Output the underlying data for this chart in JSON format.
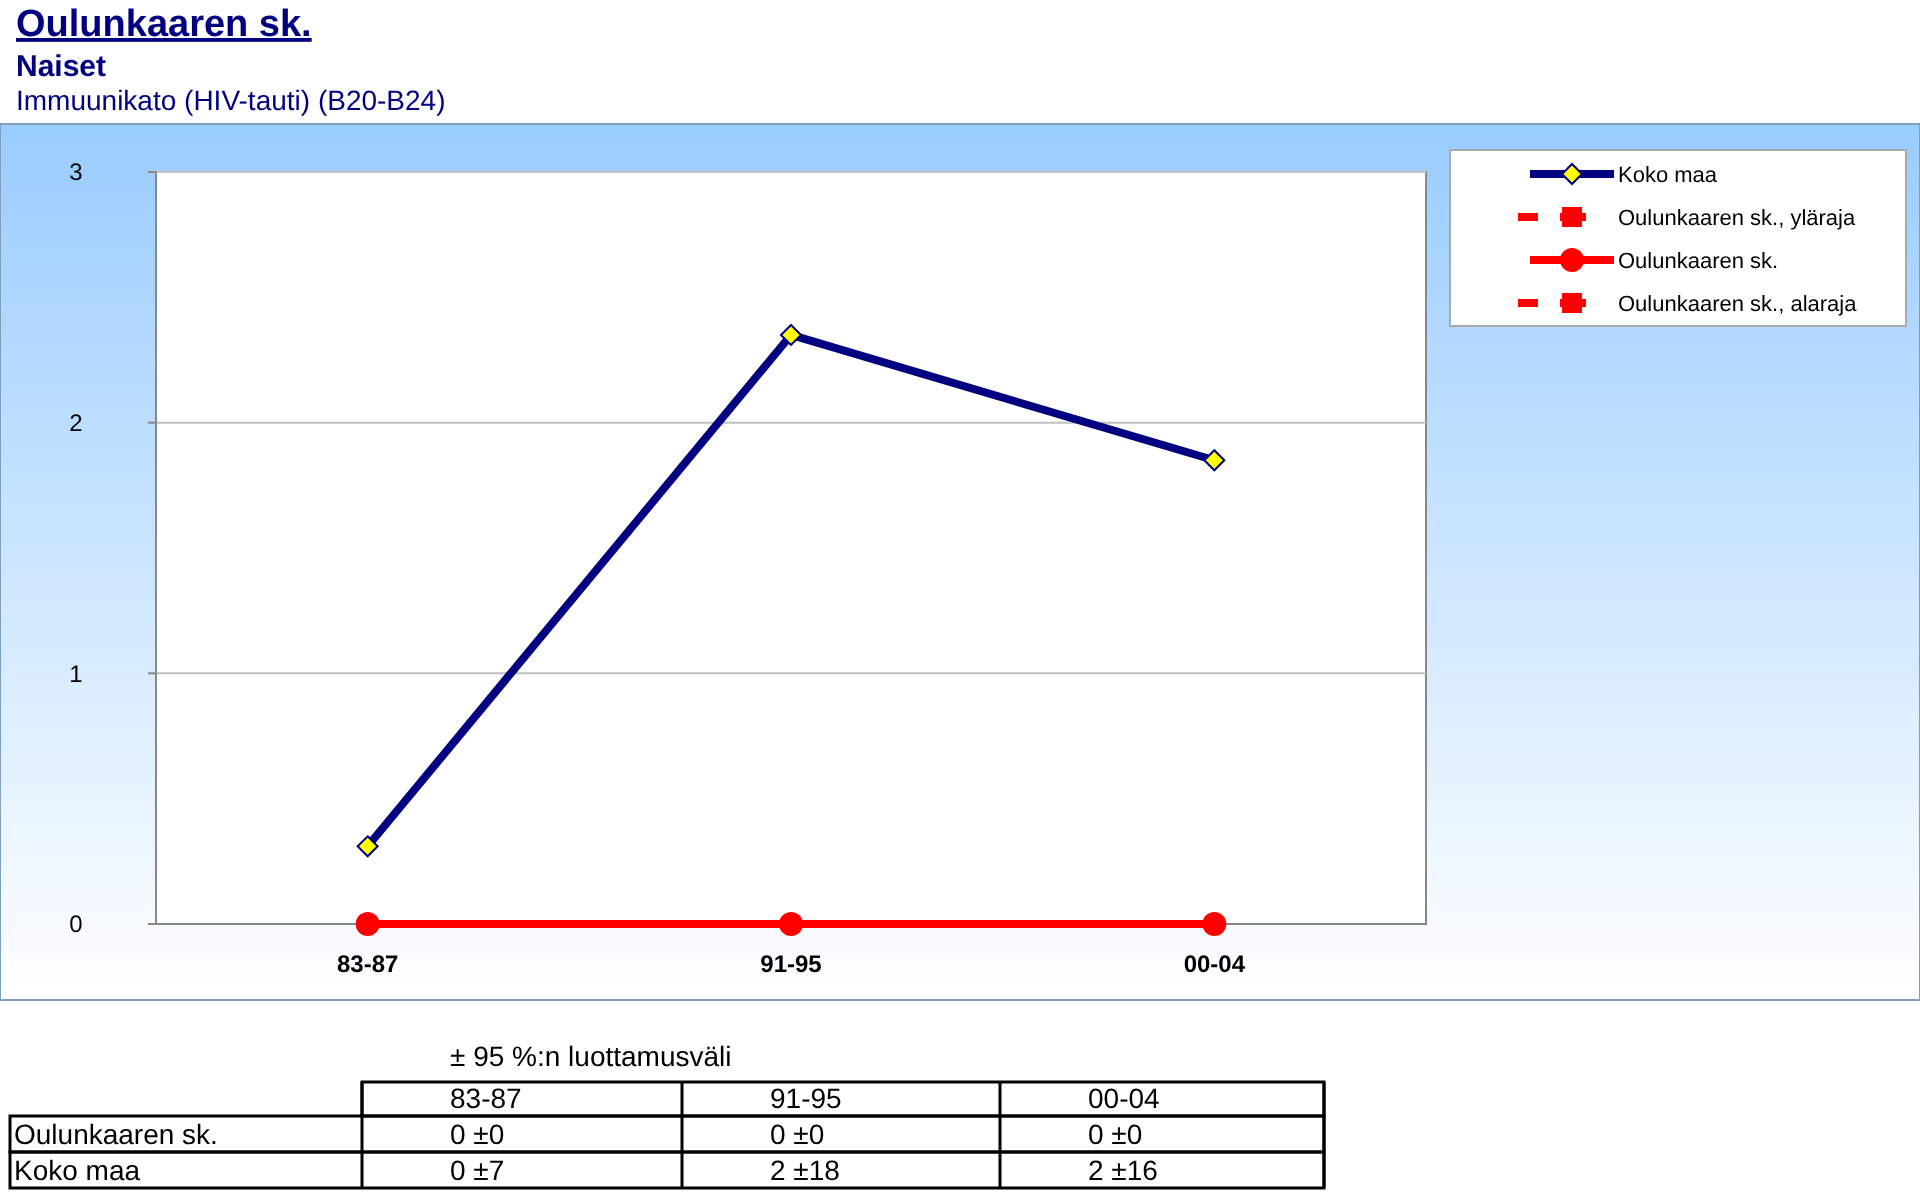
{
  "chart_data": {
    "type": "line",
    "title": "Oulunkaaren sk.",
    "subtitle": "Naiset\nImmuunikato (HIV-tauti) (B20-B24)",
    "categories": [
      "83-87",
      "91-95",
      "00-04"
    ],
    "series": [
      {
        "name": "Koko maa",
        "color": "#000080",
        "marker": "diamond",
        "line_style": "solid",
        "values": [
          0.31,
          2.35,
          1.85
        ],
        "value_labels": [
          "0 ±7",
          "2 ±18",
          "2 ±16"
        ]
      },
      {
        "name": "Oulunkaaren sk., yläraja",
        "color": "#ff0000",
        "marker": "square",
        "line_style": "dashed",
        "values": [
          null,
          null,
          null
        ]
      },
      {
        "name": "Oulunkaaren sk.",
        "color": "#ff0000",
        "marker": "circle",
        "line_style": "solid",
        "values": [
          0,
          0,
          0
        ],
        "value_labels": [
          "0 ±0",
          "0 ±0",
          "0 ±0"
        ]
      },
      {
        "name": "Oulunkaaren sk., alaraja",
        "color": "#ff0000",
        "marker": "square",
        "line_style": "dashed",
        "values": [
          null,
          null,
          null
        ]
      }
    ],
    "ylim": [
      0,
      3
    ],
    "yticks": [
      0,
      1,
      2,
      3
    ],
    "grid": "y",
    "legend": "top right",
    "annotations": [
      "± 95 %:n luottamusväli"
    ]
  }
}
